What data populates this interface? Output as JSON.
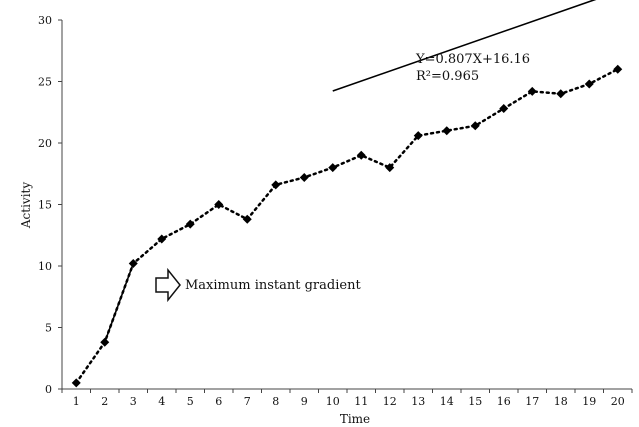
{
  "chart_data": {
    "type": "line",
    "title": "",
    "xlabel": "Time",
    "ylabel": "Activity",
    "ylim": [
      0,
      30
    ],
    "xlim": [
      1,
      20
    ],
    "y_ticks": [
      0,
      5,
      10,
      15,
      20,
      25,
      30
    ],
    "x": [
      1,
      2,
      3,
      4,
      5,
      6,
      7,
      8,
      9,
      10,
      11,
      12,
      13,
      14,
      15,
      16,
      17,
      18,
      19,
      20
    ],
    "series": [
      {
        "name": "",
        "values": [
          0.5,
          3.8,
          10.2,
          12.2,
          13.4,
          15.0,
          13.8,
          16.6,
          17.2,
          18.0,
          19.0,
          18.0,
          20.6,
          21.0,
          21.4,
          22.8,
          24.2,
          24.0,
          24.8,
          26.0
        ]
      }
    ],
    "trendline": {
      "x_range": [
        10,
        20
      ],
      "slope": 0.807,
      "intercept": 16.16,
      "equation_label": "Y=0.807X+16.16",
      "r2_label": "R²=0.965"
    },
    "gradient_segment": {
      "x": [
        2,
        3
      ],
      "y": [
        3.8,
        10.2
      ]
    },
    "annotation": "Maximum instant gradient",
    "grid": false,
    "legend": "none"
  }
}
